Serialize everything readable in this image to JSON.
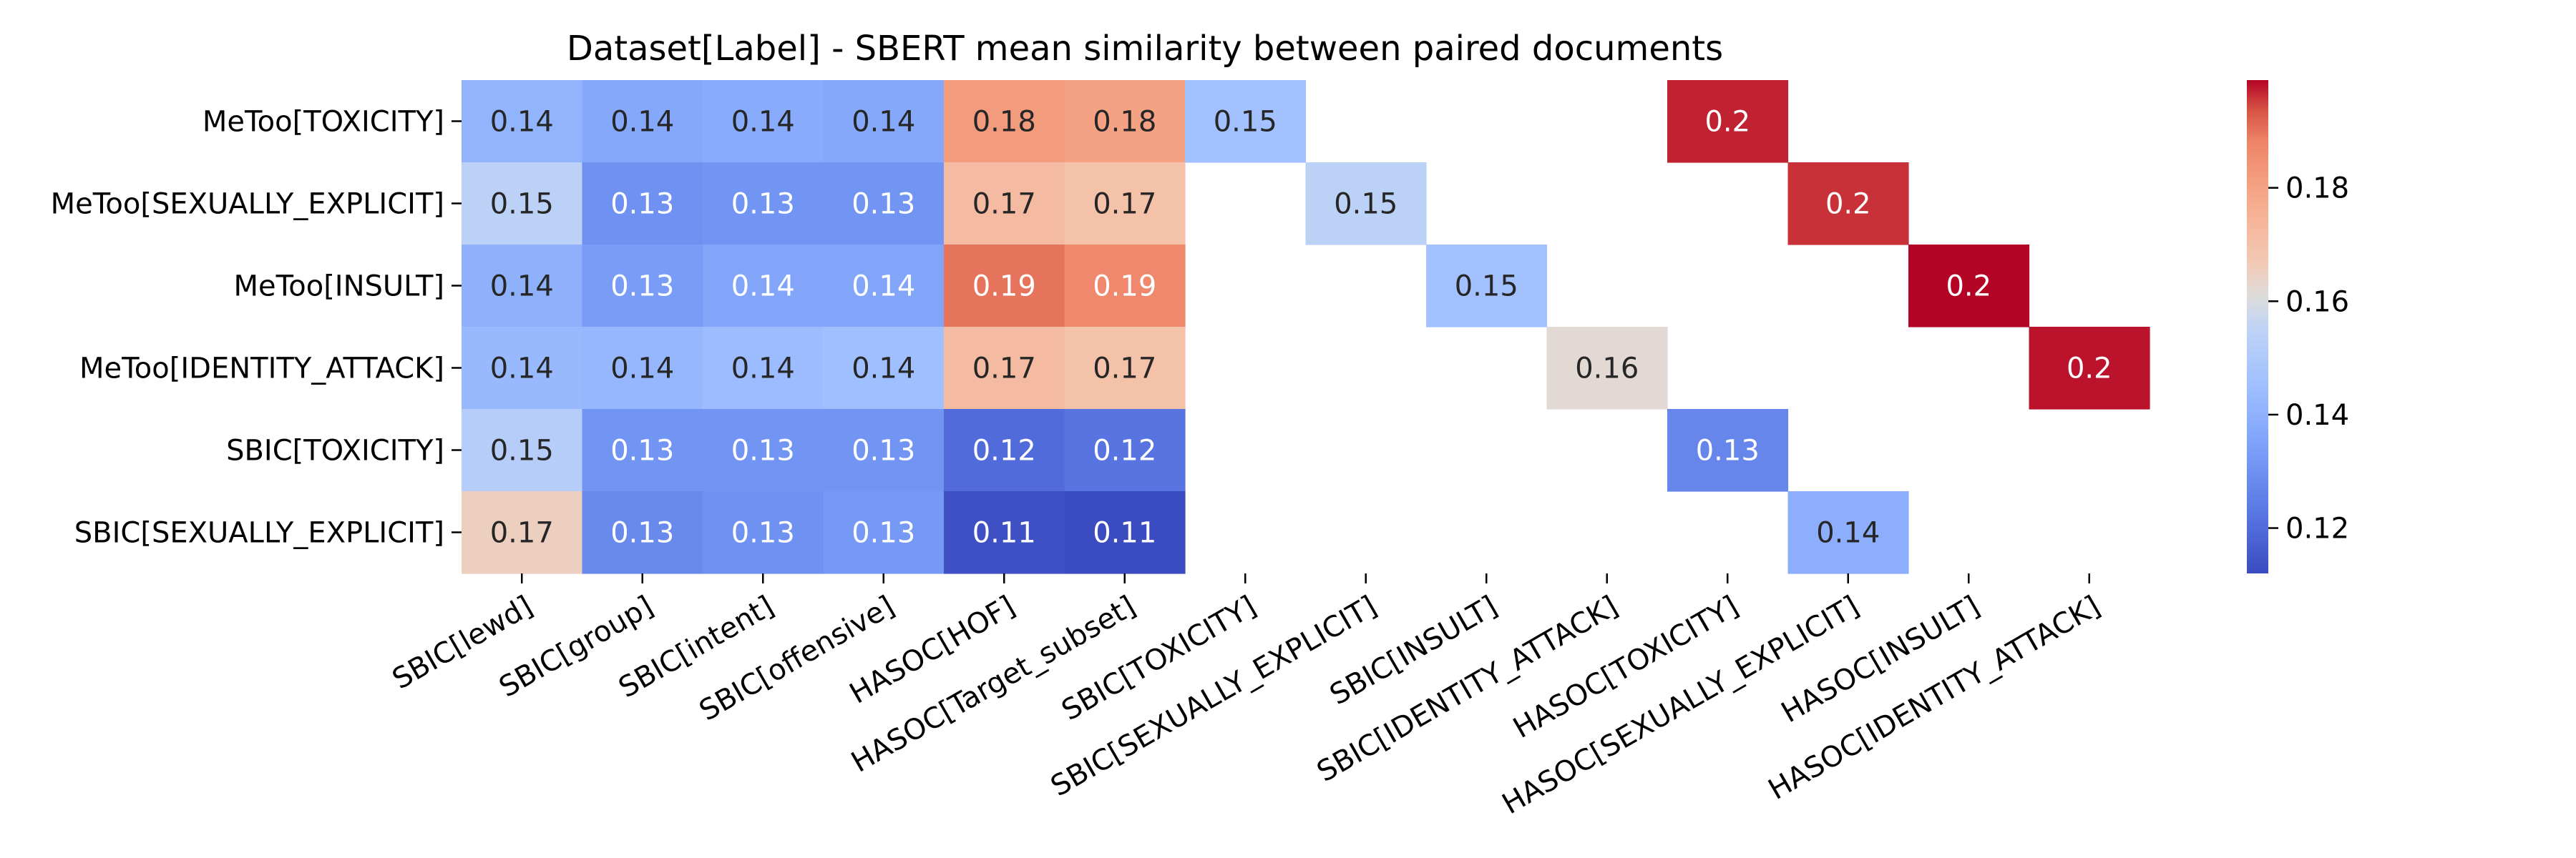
{
  "chart_data": {
    "type": "heatmap",
    "title": "Dataset[Label] - SBERT mean similarity between paired documents",
    "xlabel": "",
    "ylabel": "",
    "rows": [
      "MeToo[TOXICITY]",
      "MeToo[SEXUALLY_EXPLICIT]",
      "MeToo[INSULT]",
      "MeToo[IDENTITY_ATTACK]",
      "SBIC[TOXICITY]",
      "SBIC[SEXUALLY_EXPLICIT]"
    ],
    "columns": [
      "SBIC[lewd]",
      "SBIC[group]",
      "SBIC[intent]",
      "SBIC[offensive]",
      "HASOC[HOF]",
      "HASOC[Target_subset]",
      "SBIC[TOXICITY]",
      "SBIC[SEXUALLY_EXPLICIT]",
      "SBIC[INSULT]",
      "SBIC[IDENTITY_ATTACK]",
      "HASOC[TOXICITY]",
      "HASOC[SEXUALLY_EXPLICIT]",
      "HASOC[INSULT]",
      "HASOC[IDENTITY_ATTACK]"
    ],
    "values": [
      [
        0.141,
        0.137,
        0.138,
        0.137,
        0.182,
        0.18,
        0.146,
        null,
        null,
        null,
        0.197,
        null,
        null,
        null
      ],
      [
        0.154,
        0.13,
        0.131,
        0.131,
        0.172,
        0.17,
        null,
        0.154,
        null,
        null,
        null,
        0.196,
        null,
        null
      ],
      [
        0.14,
        0.133,
        0.136,
        0.136,
        0.19,
        0.187,
        null,
        null,
        0.146,
        null,
        null,
        null,
        0.199,
        null
      ],
      [
        0.143,
        0.142,
        0.144,
        0.145,
        0.172,
        0.17,
        null,
        null,
        null,
        0.162,
        null,
        null,
        null,
        0.198
      ],
      [
        0.152,
        0.131,
        0.131,
        0.131,
        0.12,
        0.122,
        null,
        null,
        null,
        null,
        0.127,
        null,
        null,
        null
      ],
      [
        0.165,
        0.128,
        0.13,
        0.132,
        0.113,
        0.112,
        null,
        null,
        null,
        null,
        null,
        0.139,
        null,
        null
      ]
    ],
    "labels": [
      [
        "0.14",
        "0.14",
        "0.14",
        "0.14",
        "0.18",
        "0.18",
        "0.15",
        "",
        "",
        "",
        "0.2",
        "",
        "",
        ""
      ],
      [
        "0.15",
        "0.13",
        "0.13",
        "0.13",
        "0.17",
        "0.17",
        "",
        "0.15",
        "",
        "",
        "",
        "0.2",
        "",
        ""
      ],
      [
        "0.14",
        "0.13",
        "0.14",
        "0.14",
        "0.19",
        "0.19",
        "",
        "",
        "0.15",
        "",
        "",
        "",
        "0.2",
        ""
      ],
      [
        "0.14",
        "0.14",
        "0.14",
        "0.14",
        "0.17",
        "0.17",
        "",
        "",
        "",
        "0.16",
        "",
        "",
        "",
        "0.2"
      ],
      [
        "0.15",
        "0.13",
        "0.13",
        "0.13",
        "0.12",
        "0.12",
        "",
        "",
        "",
        "",
        "0.13",
        "",
        "",
        ""
      ],
      [
        "0.17",
        "0.13",
        "0.13",
        "0.13",
        "0.11",
        "0.11",
        "",
        "",
        "",
        "",
        "",
        "0.14",
        "",
        ""
      ]
    ],
    "vmin": 0.112,
    "vmax": 0.199,
    "colorbar": {
      "ticks": [
        0.12,
        0.14,
        0.16,
        0.18
      ],
      "tick_labels": [
        "0.12",
        "0.14",
        "0.16",
        "0.18"
      ],
      "colormap": "coolwarm",
      "placement": "right"
    },
    "grid": false
  }
}
